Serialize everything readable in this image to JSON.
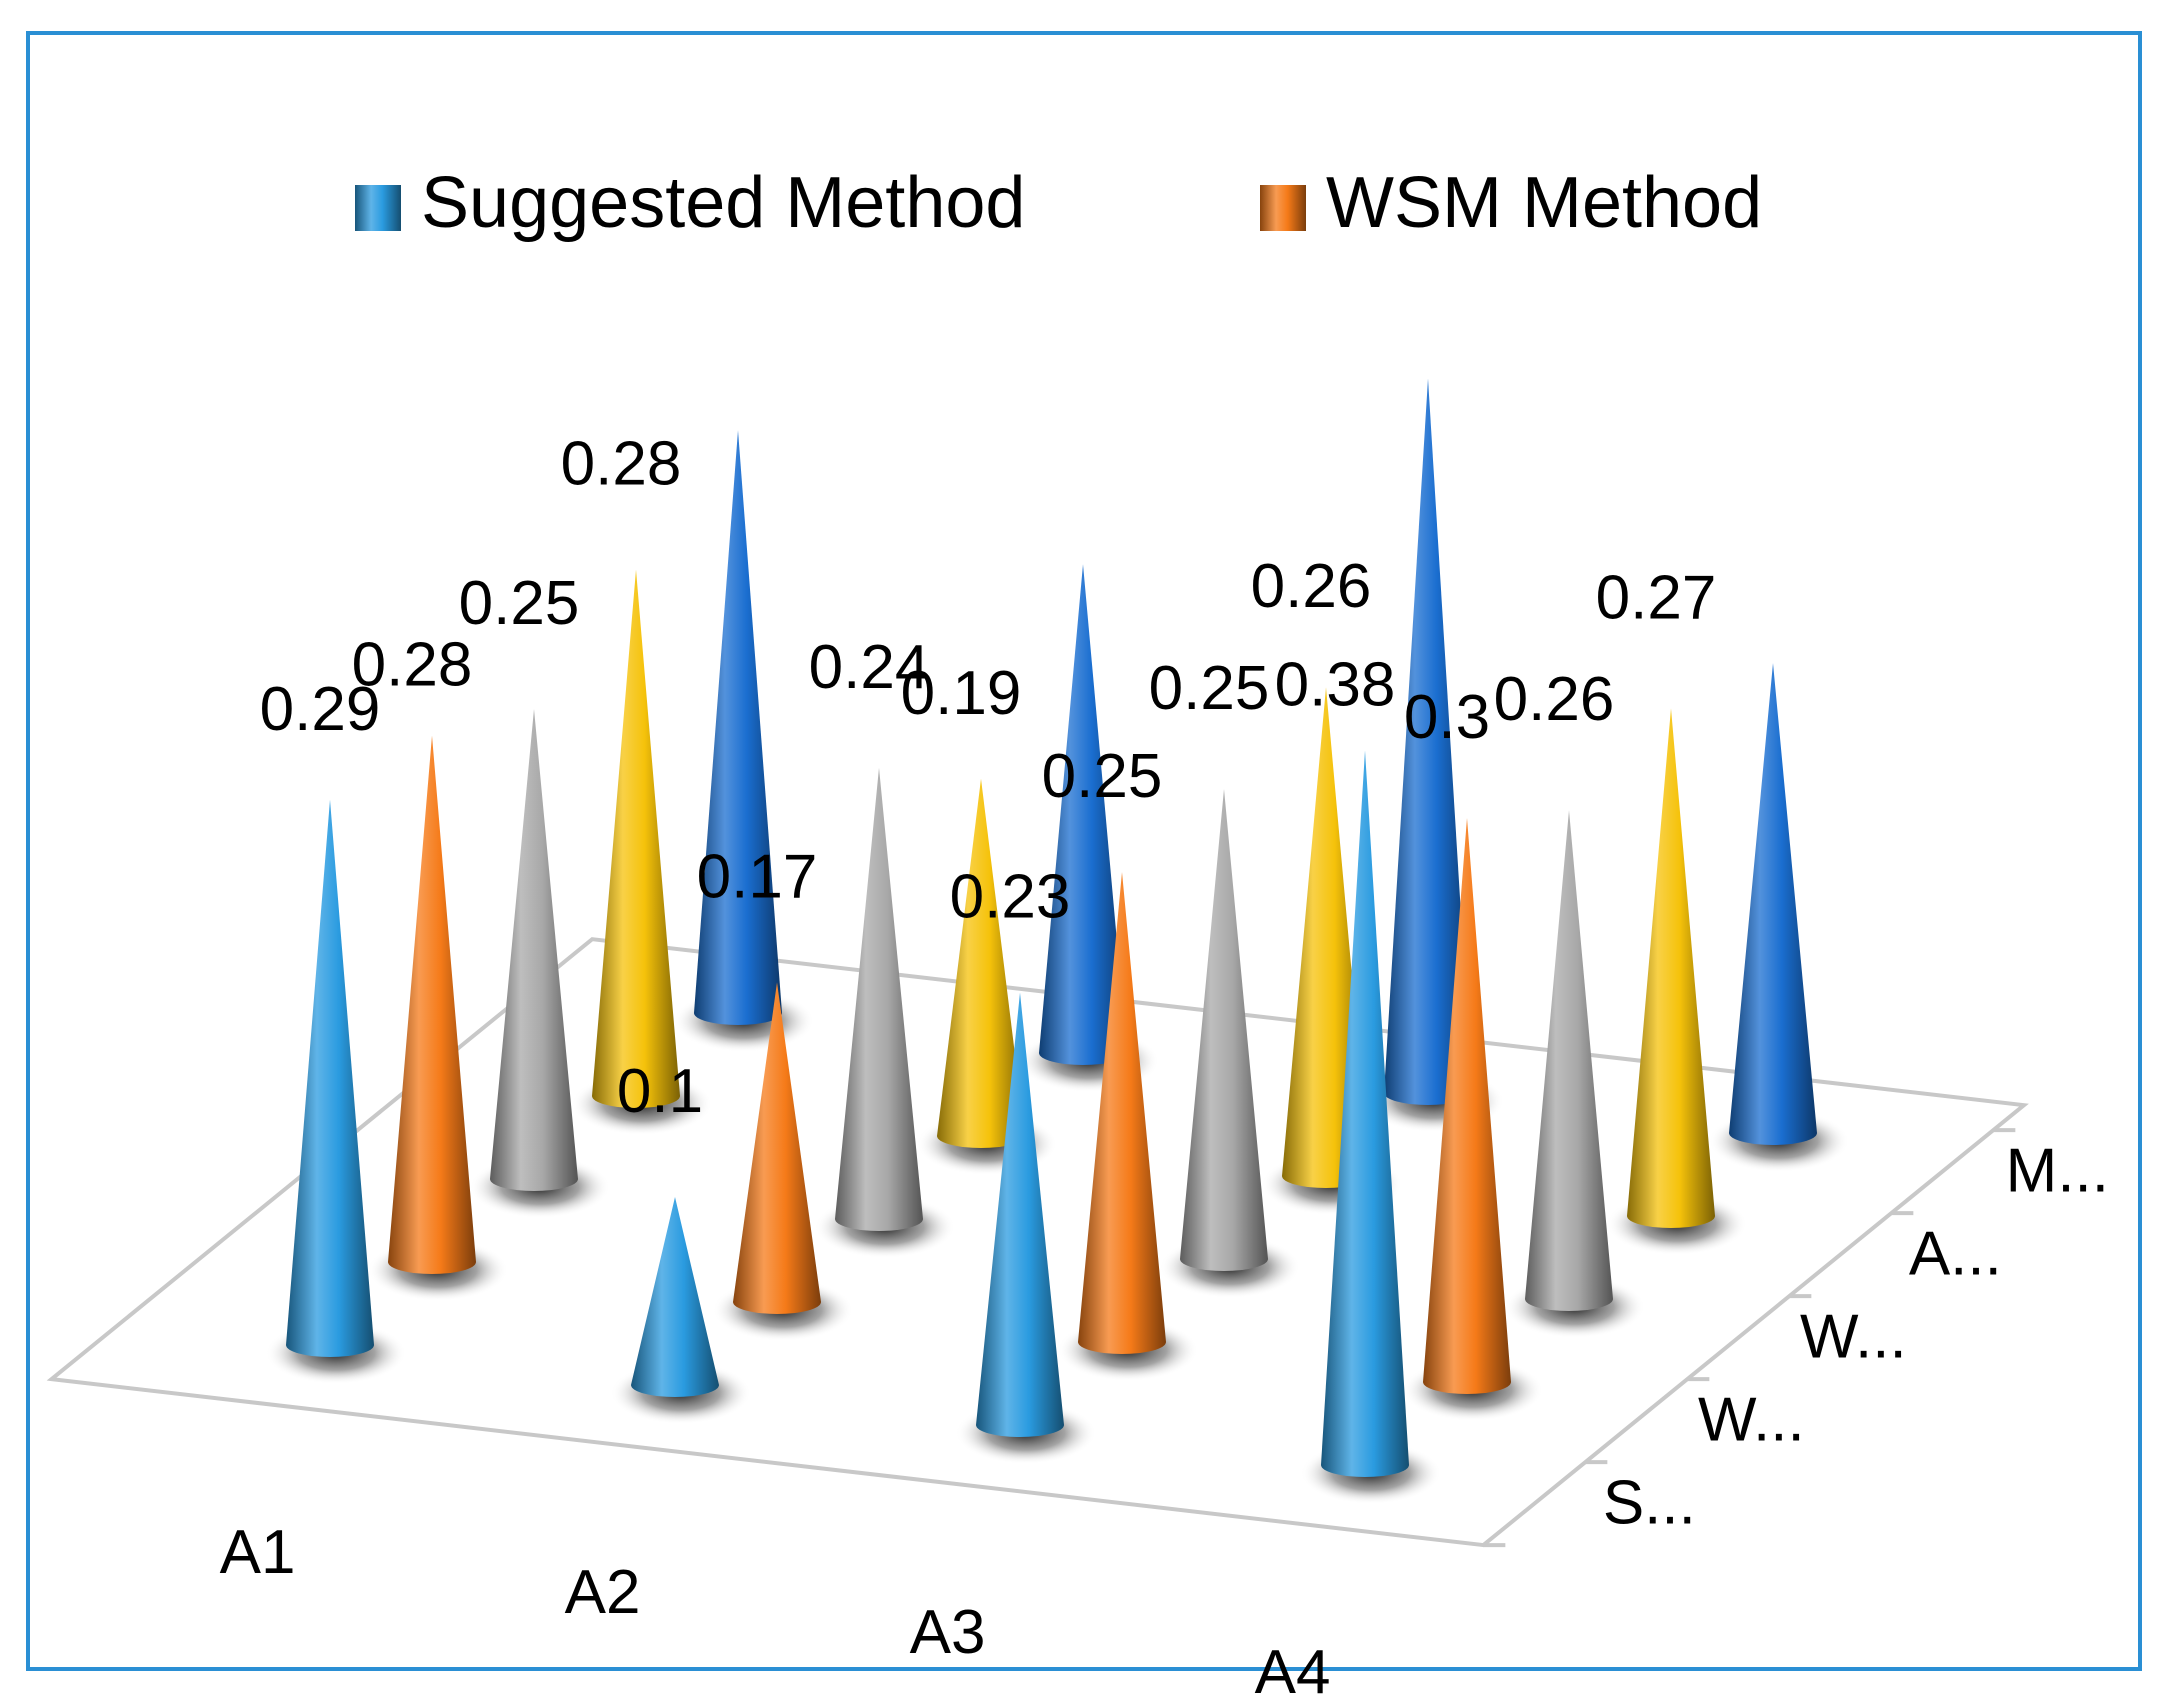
{
  "chart_data": {
    "type": "bar",
    "style": "3d-cone",
    "title": "",
    "categories": [
      "A1",
      "A2",
      "A3",
      "A4"
    ],
    "series_axis_labels": [
      "S...",
      "W...",
      "W...",
      "A...",
      "M..."
    ],
    "series": [
      {
        "name": "Suggested Method",
        "values": [
          0.29,
          0.1,
          0.23,
          0.38
        ],
        "color": "#2a9be0"
      },
      {
        "name": "WSM Method",
        "values": [
          0.28,
          0.17,
          0.25,
          0.3
        ],
        "color": "#f57a18"
      },
      {
        "name": "",
        "values": [
          0.25,
          0.24,
          0.25,
          0.26
        ],
        "color": "#a8a8a8"
      },
      {
        "name": "",
        "values": [
          0.28,
          0.19,
          0.26,
          0.27
        ],
        "color": "#f5c20a"
      },
      {
        "name": "",
        "values": [
          0.31,
          0.26,
          0.38,
          0.25
        ],
        "color": "#1a6ed0"
      }
    ],
    "data_labels": [
      {
        "text": "0.29",
        "series": 0,
        "category": 0
      },
      {
        "text": "0.28",
        "series": 1,
        "category": 0
      },
      {
        "text": "0.25",
        "series": 2,
        "category": 0
      },
      {
        "text": "0.28",
        "series": 3,
        "category": 0
      },
      {
        "text": "0.1",
        "series": 0,
        "category": 1
      },
      {
        "text": "0.17",
        "series": 1,
        "category": 1
      },
      {
        "text": "0.24",
        "series": 2,
        "category": 1
      },
      {
        "text": "0.19",
        "series": 3,
        "category": 1
      },
      {
        "text": "0.23",
        "series": 0,
        "category": 2
      },
      {
        "text": "0.25",
        "series": 1,
        "category": 2
      },
      {
        "text": "0.25",
        "series": 2,
        "category": 2
      },
      {
        "text": "0.26",
        "series": 3,
        "category": 2
      },
      {
        "text": "0.38",
        "series": 0,
        "category": 3
      },
      {
        "text": "0.3",
        "series": 1,
        "category": 3
      },
      {
        "text": "0.26",
        "series": 2,
        "category": 3
      },
      {
        "text": "0.27",
        "series": 3,
        "category": 3
      }
    ],
    "legend": {
      "position": "top",
      "entries": [
        "Suggested Method",
        "WSM Method"
      ]
    },
    "zlim": [
      0,
      0.4
    ]
  }
}
